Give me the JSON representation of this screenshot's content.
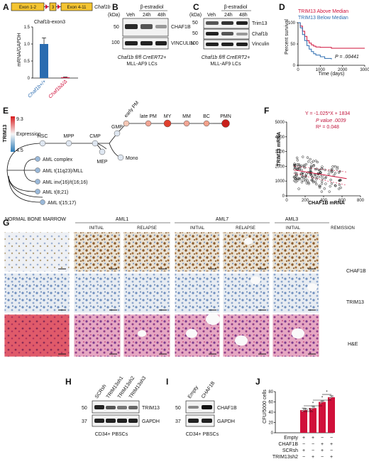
{
  "panels": {
    "A": "A",
    "B": "B",
    "C": "C",
    "D": "D",
    "E": "E",
    "F": "F",
    "G": "G",
    "H": "H",
    "I": "I",
    "J": "J"
  },
  "panelA": {
    "construct": [
      "Exon 1-2",
      "3",
      "Exon 4-11"
    ],
    "gene_label": "Chaf1b",
    "title": "Chaf1b-exon3",
    "ylabel": "mRNA/GAPDH",
    "yticks": [
      "0",
      "0.5",
      "1.0",
      "1.5"
    ],
    "chart_data": {
      "type": "bar",
      "categories": [
        "Chaf1b+/+",
        "Chaf1bΔ/Δ"
      ],
      "values": [
        1.0,
        0.02
      ],
      "errors": [
        0.18,
        0.01
      ],
      "ylim": [
        0,
        1.5
      ],
      "ylabel": "mRNA/GAPDH",
      "title": "Chaf1b-exon3"
    },
    "cat_labels": [
      "Chaf1b+/+",
      "Chaf1bΔ/Δ"
    ]
  },
  "panelB": {
    "treatment": "β-estradiol",
    "kda_label": "(kDa)",
    "lanes": [
      "Veh",
      "24h",
      "48h"
    ],
    "markers": [
      "50",
      "100"
    ],
    "bands": [
      "CHAF1B",
      "VINCULIN"
    ],
    "caption1": "Chaf1b fl/fl CreERT2+",
    "caption2": "MLL-AF9 LCs"
  },
  "panelC": {
    "treatment": "β-estradiol",
    "kda_label": "(kDa)",
    "lanes": [
      "Veh",
      "24h",
      "48h"
    ],
    "markers": [
      "50",
      "50",
      "100"
    ],
    "bands": [
      "Trim13",
      "Chaf1b",
      "Vinculin"
    ],
    "caption1": "Chaf1b fl/fl CreERT2+",
    "caption2": "MLL-AF9 LCs"
  },
  "panelD": {
    "legend": [
      "TRIM13 Above Median",
      "TRIM13 Below Median"
    ],
    "colors": {
      "above": "#d0103a",
      "below": "#2b6cb0"
    },
    "ylabel": "Percent survival",
    "xlabel": "Time (days)",
    "yticks": [
      "0",
      "50",
      "100"
    ],
    "xticks": [
      "0",
      "1000",
      "2000",
      "3000"
    ],
    "pvalue": "P = .00441",
    "chart_data": {
      "type": "line",
      "xlim": [
        0,
        3000
      ],
      "ylim": [
        0,
        100
      ],
      "series": [
        {
          "name": "TRIM13 Above Median",
          "x": [
            0,
            100,
            200,
            300,
            400,
            500,
            600,
            700,
            800,
            1000,
            1200,
            1500,
            2000,
            2500,
            3000
          ],
          "y": [
            100,
            92,
            80,
            68,
            58,
            52,
            48,
            45,
            43,
            42,
            42,
            40,
            40,
            40,
            40
          ]
        },
        {
          "name": "TRIM13 Below Median",
          "x": [
            0,
            100,
            200,
            300,
            400,
            500,
            600,
            700,
            800,
            1000,
            1200,
            1500
          ],
          "y": [
            100,
            88,
            72,
            58,
            46,
            38,
            32,
            27,
            24,
            20,
            16,
            14
          ]
        }
      ]
    }
  },
  "panelE": {
    "gene": "TRIM13",
    "legend_max": "9.3",
    "legend_mid": "Expression",
    "legend_min": "4.5",
    "nodes": [
      "HSC",
      "MPP",
      "CMP",
      "GMP",
      "early PM",
      "late PM",
      "MY",
      "MM",
      "BC",
      "PMN",
      "Mono",
      "MEP"
    ],
    "aml": [
      "AML complex",
      "AML t(11q23)/MLL",
      "AML inv(16)/t(16;16)",
      "AML t(8;21)",
      "AML t(15;17)"
    ]
  },
  "panelF": {
    "equation": "Y = -1.025*X + 1834",
    "pvalue": "P value .0039",
    "r2": "R² = 0.048",
    "ylabel": "TRIM13 mRNA",
    "xlabel": "CHAF1B mRNA",
    "yticks": [
      "0",
      "1000",
      "2000",
      "3000",
      "4000",
      "5000"
    ],
    "xticks": [
      "0",
      "200",
      "400",
      "600",
      "800"
    ],
    "chart_data": {
      "type": "scatter",
      "xlim": [
        0,
        800
      ],
      "ylim": [
        0,
        5000
      ],
      "fit": {
        "slope": -1.025,
        "intercept": 1834
      }
    }
  },
  "panelG": {
    "columns": [
      "NORMAL BONE MARROW",
      "AML1",
      "AML7",
      "AML3"
    ],
    "sub": [
      "INITIAL",
      "RELAPSE",
      "INITIAL",
      "RELAPSE",
      "INITIAL",
      "REMISSION"
    ],
    "rows": [
      "CHAF1B",
      "TRIM13",
      "H&E"
    ]
  },
  "panelH": {
    "lanes": [
      "SCRsh",
      "TRIM13sh1",
      "TRIM13sh2",
      "TRIM13sh3"
    ],
    "markers": [
      "50",
      "37"
    ],
    "bands": [
      "TRIM13",
      "GAPDH"
    ],
    "caption": "CD34+ PBSCs"
  },
  "panelI": {
    "lanes": [
      "Empty",
      "CHAF1B"
    ],
    "markers": [
      "50",
      "37"
    ],
    "bands": [
      "CHAF1B",
      "GAPDH"
    ],
    "caption": "CD34+ PBSCs"
  },
  "panelJ": {
    "ylabel": "CFU/5000 cells",
    "yticks": [
      "0",
      "20",
      "40",
      "60",
      "80"
    ],
    "sig": [
      "n.s.",
      "*",
      "*",
      "*"
    ],
    "row_labels": [
      "Empty",
      "CHAF1B",
      "SCRsh",
      "TRIM13sh2"
    ],
    "signs": [
      [
        "+",
        "+",
        "−",
        "−"
      ],
      [
        "−",
        "−",
        "+",
        "+"
      ],
      [
        "+",
        "−",
        "+",
        "−"
      ],
      [
        "−",
        "+",
        "−",
        "+"
      ]
    ],
    "chart_data": {
      "type": "bar",
      "categories": [
        "Empty+SCRsh",
        "Empty+TRIM13sh2",
        "CHAF1B+SCRsh",
        "CHAF1B+TRIM13sh2"
      ],
      "values": [
        44,
        48,
        60,
        69
      ],
      "errors": [
        4,
        4,
        2,
        3
      ],
      "ylim": [
        0,
        80
      ],
      "ylabel": "CFU/5000 cells"
    }
  }
}
